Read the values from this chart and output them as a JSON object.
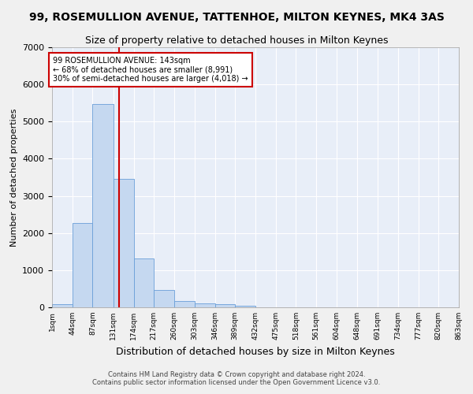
{
  "title": "99, ROSEMULLION AVENUE, TATTENHOE, MILTON KEYNES, MK4 3AS",
  "subtitle": "Size of property relative to detached houses in Milton Keynes",
  "xlabel": "Distribution of detached houses by size in Milton Keynes",
  "ylabel": "Number of detached properties",
  "footer_line1": "Contains HM Land Registry data © Crown copyright and database right 2024.",
  "footer_line2": "Contains public sector information licensed under the Open Government Licence v3.0.",
  "bar_edges": [
    1,
    44,
    87,
    131,
    174,
    217,
    260,
    303,
    346,
    389,
    432,
    475,
    518,
    561,
    604,
    648,
    691,
    734,
    777,
    820,
    863
  ],
  "bar_heights": [
    75,
    2280,
    5470,
    3450,
    1310,
    460,
    160,
    100,
    75,
    50,
    0,
    0,
    0,
    0,
    0,
    0,
    0,
    0,
    0,
    0
  ],
  "bar_color": "#c5d8f0",
  "bar_edge_color": "#6a9fd8",
  "bg_color": "#e8eef8",
  "grid_color": "#ffffff",
  "fig_bg_color": "#f0f0f0",
  "vline_x": 143,
  "vline_color": "#cc0000",
  "annotation_text": "99 ROSEMULLION AVENUE: 143sqm\n← 68% of detached houses are smaller (8,991)\n30% of semi-detached houses are larger (4,018) →",
  "annotation_box_color": "#ffffff",
  "annotation_border_color": "#cc0000",
  "ylim": [
    0,
    7000
  ],
  "yticks": [
    0,
    1000,
    2000,
    3000,
    4000,
    5000,
    6000,
    7000
  ],
  "title_fontsize": 10,
  "subtitle_fontsize": 9,
  "xlabel_fontsize": 9,
  "ylabel_fontsize": 8,
  "annot_fontsize": 7,
  "footer_fontsize": 6,
  "tick_labels": [
    "1sqm",
    "44sqm",
    "87sqm",
    "131sqm",
    "174sqm",
    "217sqm",
    "260sqm",
    "303sqm",
    "346sqm",
    "389sqm",
    "432sqm",
    "475sqm",
    "518sqm",
    "561sqm",
    "604sqm",
    "648sqm",
    "691sqm",
    "734sqm",
    "777sqm",
    "820sqm",
    "863sqm"
  ]
}
